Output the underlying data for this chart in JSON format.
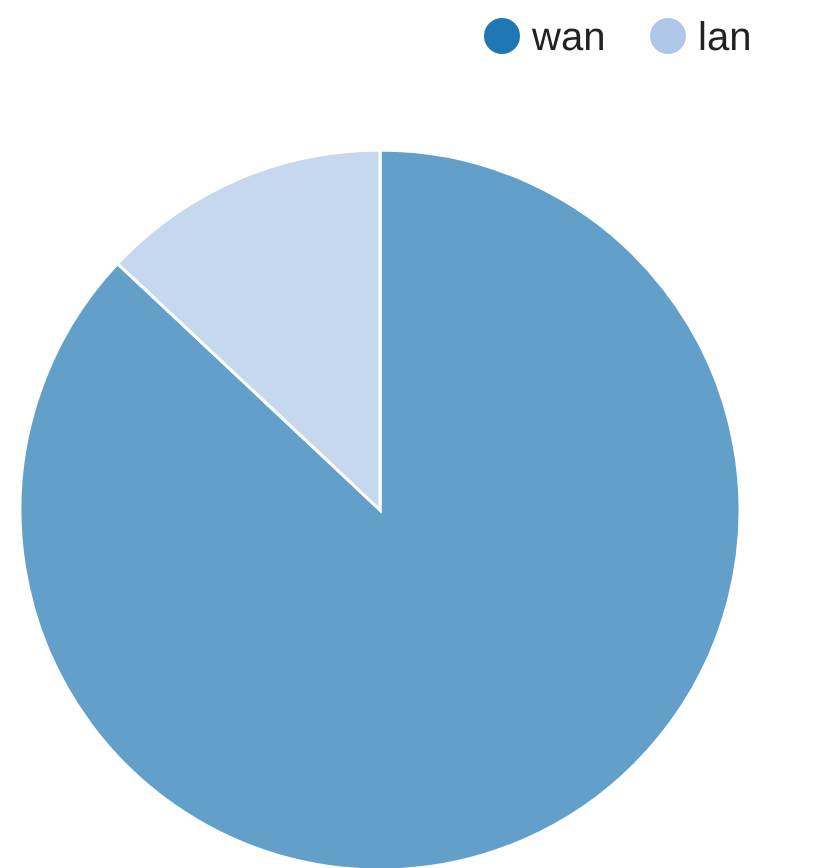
{
  "chart_data": {
    "type": "pie",
    "categories": [
      "wan",
      "lan"
    ],
    "values": [
      87,
      13
    ],
    "colors": [
      "#1f77b4",
      "#aec7e8"
    ],
    "legend": "top right"
  }
}
